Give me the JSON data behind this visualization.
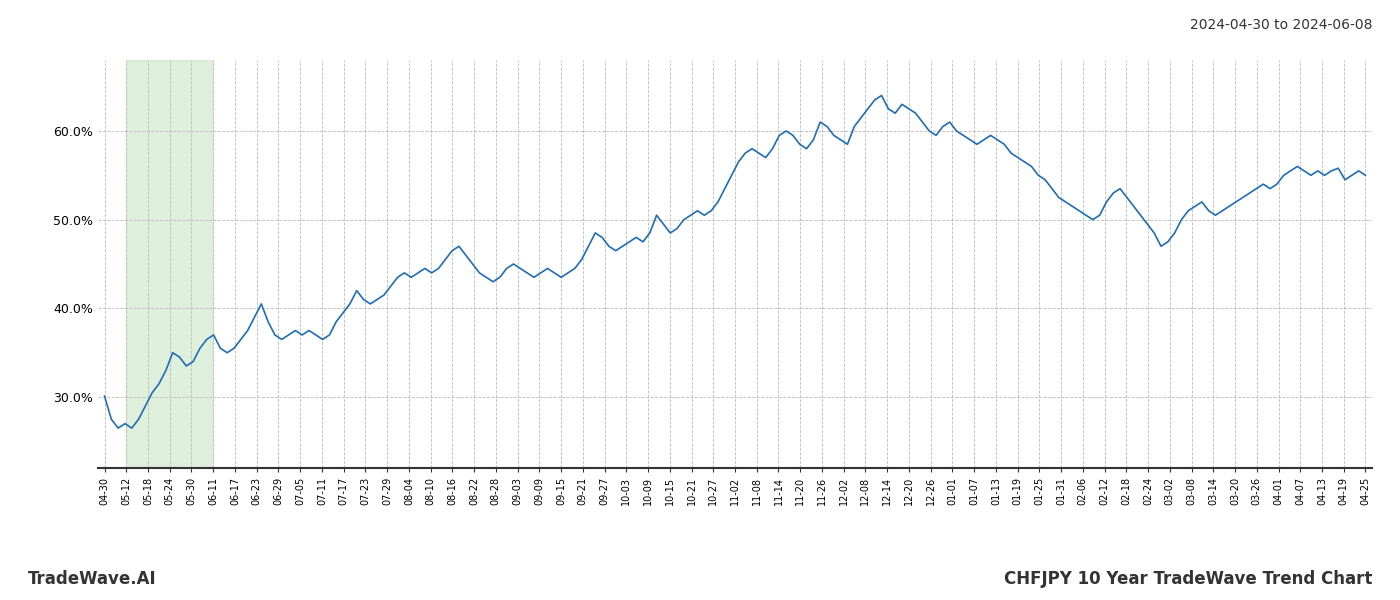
{
  "title_right": "2024-04-30 to 2024-06-08",
  "footer_left": "TradeWave.AI",
  "footer_right": "CHFJPY 10 Year TradeWave Trend Chart",
  "line_color": "#1f6db5",
  "line_width": 1.2,
  "bg_color": "#ffffff",
  "grid_color": "#bbbbbb",
  "highlight_color": "#d6ecd2",
  "highlight_alpha": 0.8,
  "ylim": [
    22,
    68
  ],
  "yticks": [
    30.0,
    40.0,
    50.0,
    60.0
  ],
  "x_labels": [
    "04-30",
    "05-12",
    "05-18",
    "05-24",
    "05-30",
    "06-11",
    "06-17",
    "06-23",
    "06-29",
    "07-05",
    "07-11",
    "07-17",
    "07-23",
    "07-29",
    "08-04",
    "08-10",
    "08-16",
    "08-22",
    "08-28",
    "09-03",
    "09-09",
    "09-15",
    "09-21",
    "09-27",
    "10-03",
    "10-09",
    "10-15",
    "10-21",
    "10-27",
    "11-02",
    "11-08",
    "11-14",
    "11-20",
    "11-26",
    "12-02",
    "12-08",
    "12-14",
    "12-20",
    "12-26",
    "01-01",
    "01-07",
    "01-13",
    "01-19",
    "01-25",
    "01-31",
    "02-06",
    "02-12",
    "02-18",
    "02-24",
    "03-02",
    "03-08",
    "03-14",
    "03-20",
    "03-26",
    "04-01",
    "04-07",
    "04-13",
    "04-19",
    "04-25"
  ],
  "highlight_x_start": "05-12",
  "highlight_x_end": "06-11",
  "values": [
    30.1,
    27.5,
    26.5,
    27.0,
    26.5,
    27.5,
    29.0,
    30.5,
    31.5,
    33.0,
    35.0,
    34.5,
    33.5,
    34.0,
    35.5,
    36.5,
    37.0,
    35.5,
    35.0,
    35.5,
    36.5,
    37.5,
    39.0,
    40.5,
    38.5,
    37.0,
    36.5,
    37.0,
    37.5,
    37.0,
    37.5,
    37.0,
    36.5,
    37.0,
    38.5,
    39.5,
    40.5,
    42.0,
    41.0,
    40.5,
    41.0,
    41.5,
    42.5,
    43.5,
    44.0,
    43.5,
    44.0,
    44.5,
    44.0,
    44.5,
    45.5,
    46.5,
    47.0,
    46.0,
    45.0,
    44.0,
    43.5,
    43.0,
    43.5,
    44.5,
    45.0,
    44.5,
    44.0,
    43.5,
    44.0,
    44.5,
    44.0,
    43.5,
    44.0,
    44.5,
    45.5,
    47.0,
    48.5,
    48.0,
    47.0,
    46.5,
    47.0,
    47.5,
    48.0,
    47.5,
    48.5,
    50.5,
    49.5,
    48.5,
    49.0,
    50.0,
    50.5,
    51.0,
    50.5,
    51.0,
    52.0,
    53.5,
    55.0,
    56.5,
    57.5,
    58.0,
    57.5,
    57.0,
    58.0,
    59.5,
    60.0,
    59.5,
    58.5,
    58.0,
    59.0,
    61.0,
    60.5,
    59.5,
    59.0,
    58.5,
    60.5,
    61.5,
    62.5,
    63.5,
    64.0,
    62.5,
    62.0,
    63.0,
    62.5,
    62.0,
    61.0,
    60.0,
    59.5,
    60.5,
    61.0,
    60.0,
    59.5,
    59.0,
    58.5,
    59.0,
    59.5,
    59.0,
    58.5,
    57.5,
    57.0,
    56.5,
    56.0,
    55.0,
    54.5,
    53.5,
    52.5,
    52.0,
    51.5,
    51.0,
    50.5,
    50.0,
    50.5,
    52.0,
    53.0,
    53.5,
    52.5,
    51.5,
    50.5,
    49.5,
    48.5,
    47.0,
    47.5,
    48.5,
    50.0,
    51.0,
    51.5,
    52.0,
    51.0,
    50.5,
    51.0,
    51.5,
    52.0,
    52.5,
    53.0,
    53.5,
    54.0,
    53.5,
    54.0,
    55.0,
    55.5,
    56.0,
    55.5,
    55.0,
    55.5,
    55.0,
    55.5,
    55.8,
    54.5,
    55.0,
    55.5,
    55.0
  ]
}
